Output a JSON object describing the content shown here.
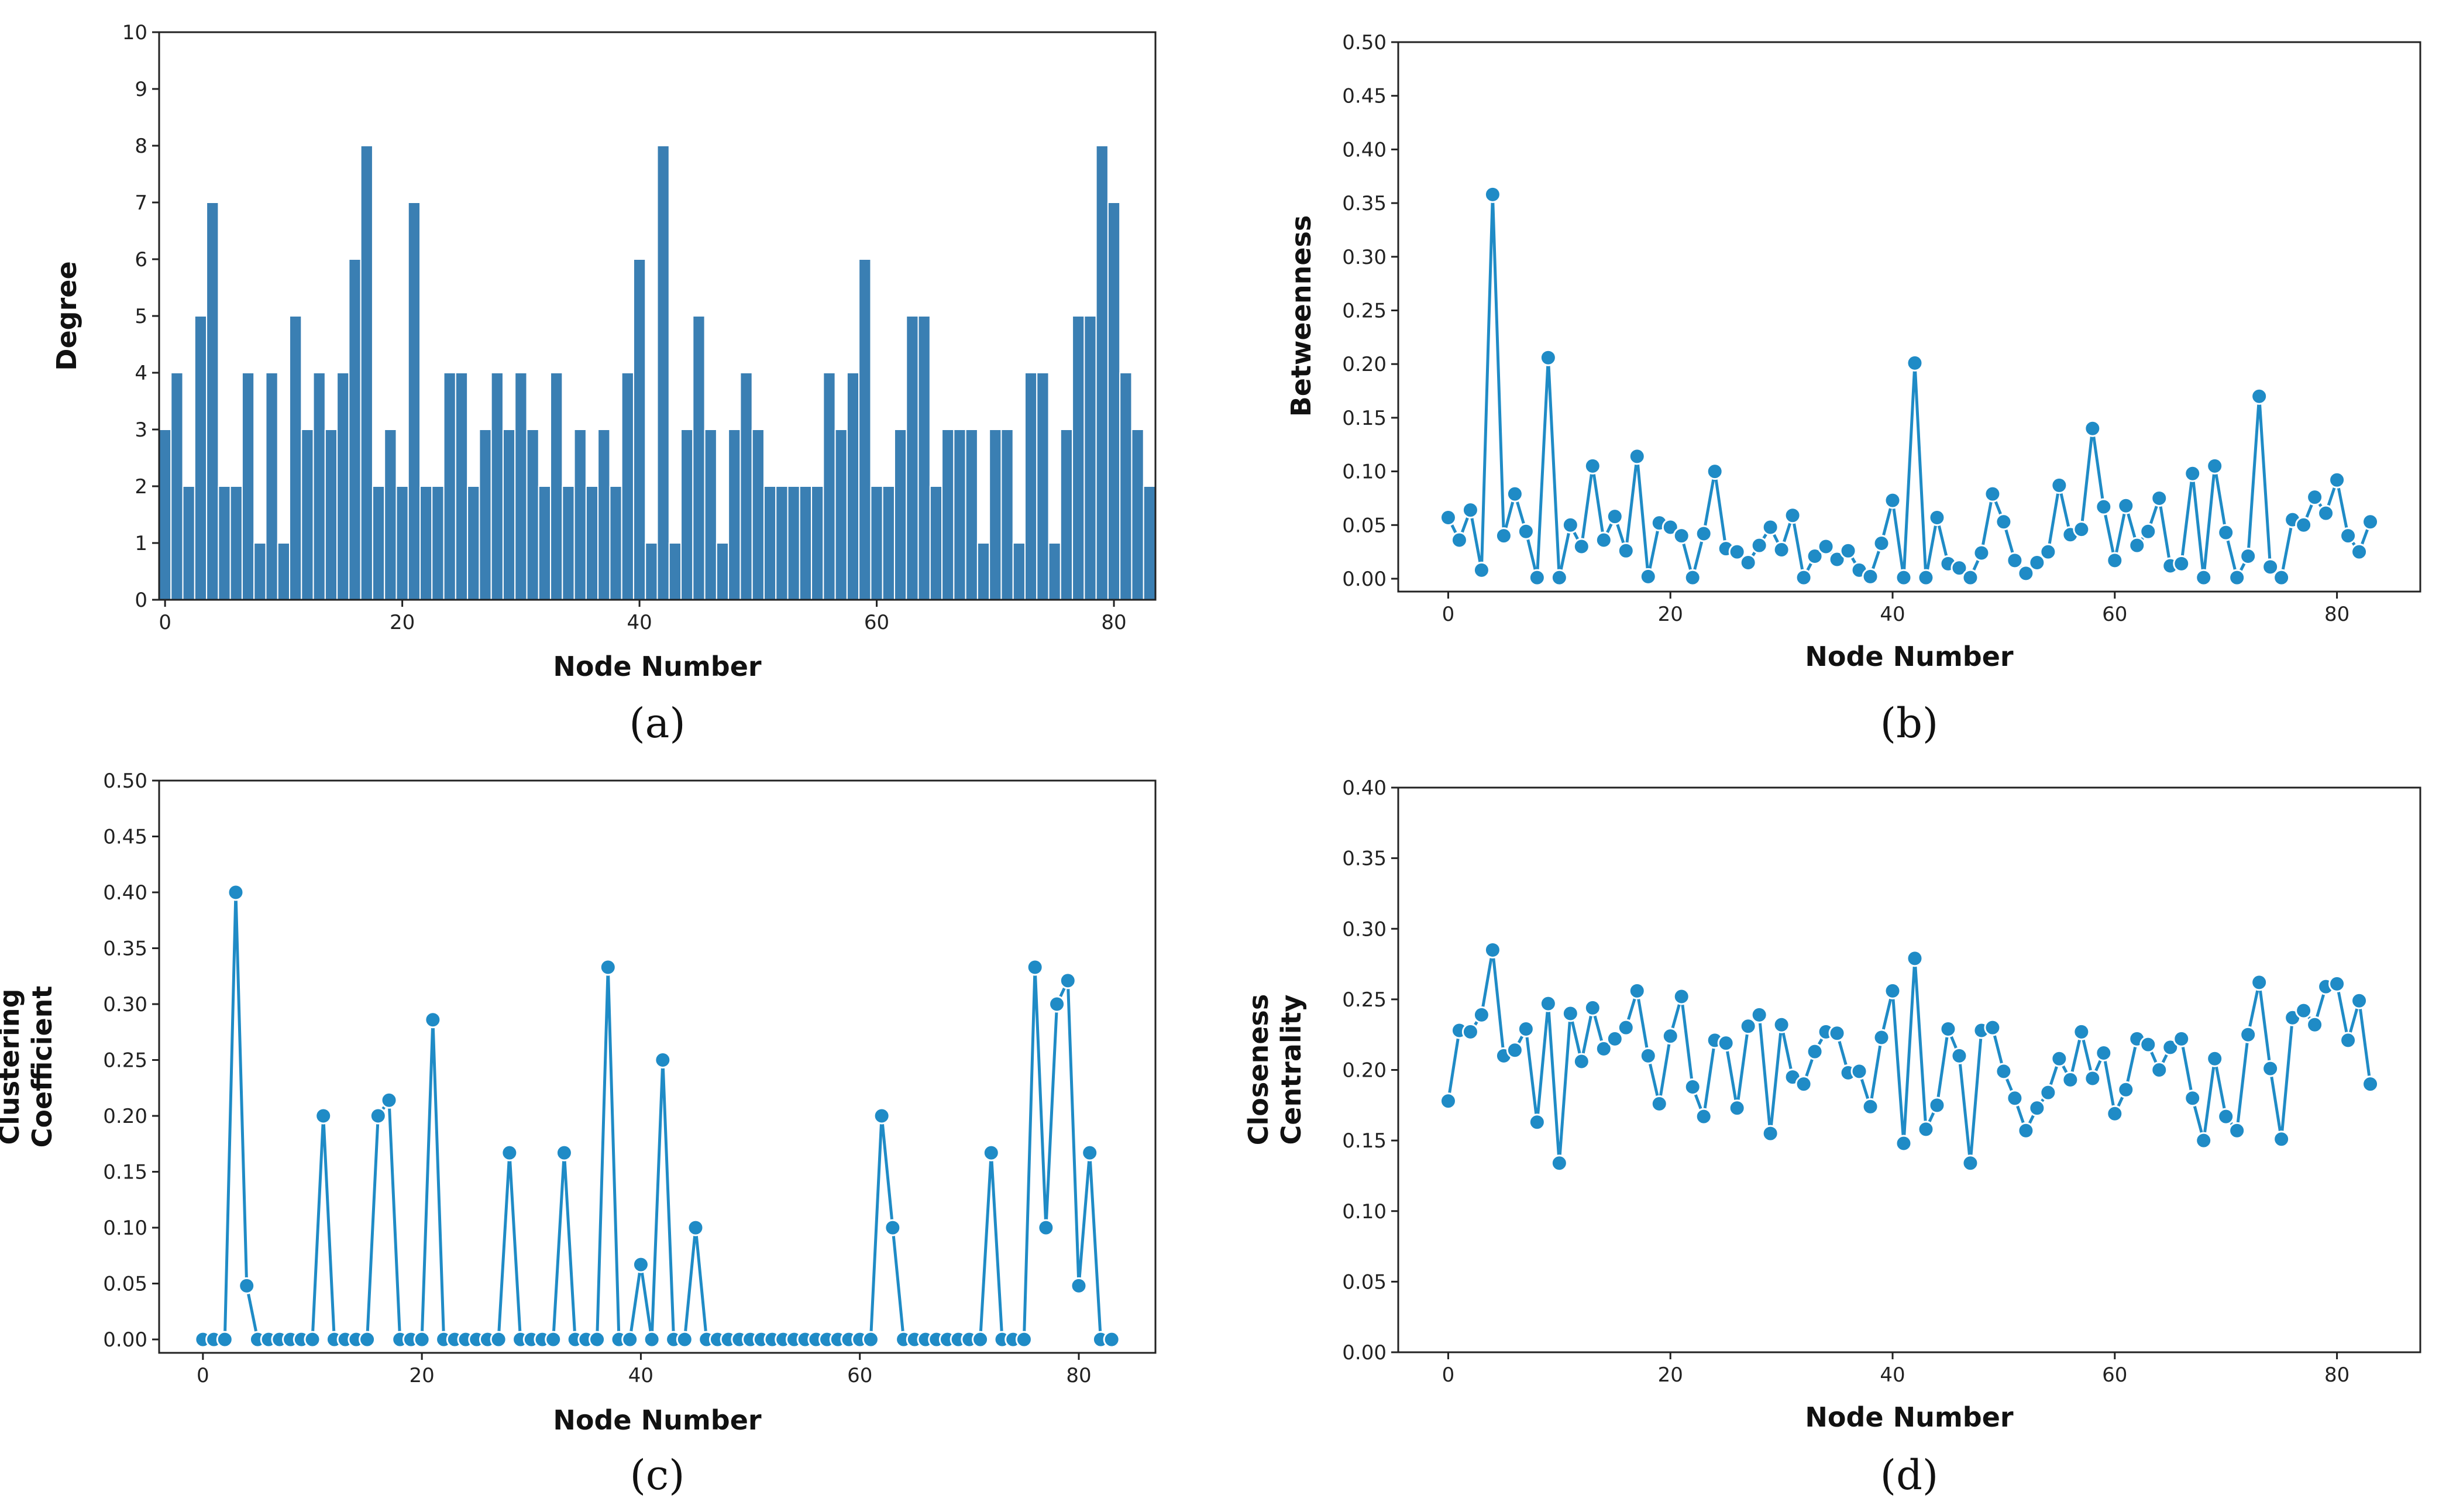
{
  "chart_data": [
    {
      "id": "a",
      "type": "bar",
      "caption": "(a)",
      "xlabel": "Node Number",
      "ylabel": [
        "Degree"
      ],
      "xlim": [
        -0.5,
        83.5
      ],
      "ylim": [
        0,
        10
      ],
      "yticks": [
        "0",
        "1",
        "2",
        "3",
        "4",
        "5",
        "6",
        "7",
        "8",
        "9",
        "10"
      ],
      "xticks": [
        "0",
        "20",
        "40",
        "60",
        "80"
      ],
      "xtick_values": [
        0,
        20,
        40,
        60,
        80
      ],
      "color": "#3a7fb3",
      "values": [
        3,
        4,
        2,
        5,
        7,
        2,
        2,
        4,
        1,
        4,
        1,
        5,
        3,
        4,
        3,
        4,
        6,
        8,
        2,
        3,
        2,
        7,
        2,
        2,
        4,
        4,
        2,
        3,
        4,
        3,
        4,
        3,
        2,
        4,
        2,
        3,
        2,
        3,
        2,
        4,
        6,
        1,
        8,
        1,
        3,
        5,
        3,
        1,
        3,
        4,
        3,
        2,
        2,
        2,
        2,
        2,
        4,
        3,
        4,
        6,
        2,
        2,
        3,
        5,
        5,
        2,
        3,
        3,
        3,
        1,
        3,
        3,
        1,
        4,
        4,
        1,
        3,
        5,
        5,
        8,
        7,
        4,
        3,
        2
      ]
    },
    {
      "id": "b",
      "type": "line",
      "caption": "(b)",
      "xlabel": "Node Number",
      "ylabel": [
        "Betweenness"
      ],
      "xlim": [
        -4.5,
        87.5
      ],
      "ylim": [
        -0.012,
        0.5
      ],
      "yticks": [
        "0.00",
        "0.05",
        "0.10",
        "0.15",
        "0.20",
        "0.25",
        "0.30",
        "0.35",
        "0.40",
        "0.45",
        "0.50"
      ],
      "xticks": [
        "0",
        "20",
        "40",
        "60",
        "80"
      ],
      "xtick_values": [
        0,
        20,
        40,
        60,
        80
      ],
      "color": "#1f8bc6",
      "values": [
        0.057,
        0.036,
        0.064,
        0.008,
        0.358,
        0.04,
        0.079,
        0.044,
        0.001,
        0.206,
        0.001,
        0.05,
        0.03,
        0.105,
        0.036,
        0.058,
        0.026,
        0.114,
        0.002,
        0.052,
        0.048,
        0.04,
        0.001,
        0.042,
        0.1,
        0.028,
        0.025,
        0.015,
        0.031,
        0.048,
        0.027,
        0.059,
        0.001,
        0.021,
        0.03,
        0.018,
        0.026,
        0.008,
        0.002,
        0.033,
        0.073,
        0.001,
        0.201,
        0.001,
        0.057,
        0.014,
        0.01,
        0.001,
        0.024,
        0.079,
        0.053,
        0.017,
        0.005,
        0.015,
        0.025,
        0.087,
        0.041,
        0.046,
        0.14,
        0.067,
        0.017,
        0.068,
        0.031,
        0.044,
        0.075,
        0.012,
        0.014,
        0.098,
        0.001,
        0.105,
        0.043,
        0.001,
        0.021,
        0.17,
        0.011,
        0.001,
        0.055,
        0.05,
        0.076,
        0.061,
        0.092,
        0.04,
        0.025,
        0.053
      ]
    },
    {
      "id": "c",
      "type": "line",
      "caption": "(c)",
      "xlabel": "Node Number",
      "ylabel": [
        "Clustering",
        "Coefficient"
      ],
      "xlim": [
        -4,
        87
      ],
      "ylim": [
        -0.012,
        0.5
      ],
      "yticks": [
        "0.00",
        "0.05",
        "0.10",
        "0.15",
        "0.20",
        "0.25",
        "0.30",
        "0.35",
        "0.40",
        "0.45",
        "0.50"
      ],
      "xticks": [
        "0",
        "20",
        "40",
        "60",
        "80"
      ],
      "xtick_values": [
        0,
        20,
        40,
        60,
        80
      ],
      "color": "#1f8bc6",
      "values": [
        0,
        0,
        0,
        0.4,
        0.048,
        0,
        0,
        0,
        0,
        0,
        0,
        0.2,
        0,
        0,
        0,
        0,
        0.2,
        0.214,
        0,
        0,
        0,
        0.286,
        0,
        0,
        0,
        0,
        0,
        0,
        0.167,
        0,
        0,
        0,
        0,
        0.167,
        0,
        0,
        0,
        0.333,
        0,
        0,
        0.067,
        0,
        0.25,
        0,
        0,
        0.1,
        0,
        0,
        0,
        0,
        0,
        0,
        0,
        0,
        0,
        0,
        0,
        0,
        0,
        0,
        0,
        0,
        0.2,
        0.1,
        0,
        0,
        0,
        0,
        0,
        0,
        0,
        0,
        0.167,
        0,
        0,
        0,
        0.333,
        0.1,
        0.3,
        0.321,
        0.048,
        0.167,
        0,
        0
      ]
    },
    {
      "id": "d",
      "type": "line",
      "caption": "(d)",
      "xlabel": "Node Number",
      "ylabel": [
        "Closeness",
        "Centrality"
      ],
      "xlim": [
        -4.5,
        87.5
      ],
      "ylim": [
        0,
        0.4
      ],
      "yticks": [
        "0.00",
        "0.05",
        "0.10",
        "0.15",
        "0.20",
        "0.25",
        "0.30",
        "0.35",
        "0.40"
      ],
      "xticks": [
        "0",
        "20",
        "40",
        "60",
        "80"
      ],
      "xtick_values": [
        0,
        20,
        40,
        60,
        80
      ],
      "color": "#1f8bc6",
      "values": [
        0.178,
        0.228,
        0.227,
        0.239,
        0.285,
        0.21,
        0.214,
        0.229,
        0.163,
        0.247,
        0.134,
        0.24,
        0.206,
        0.244,
        0.215,
        0.222,
        0.23,
        0.256,
        0.21,
        0.176,
        0.224,
        0.252,
        0.188,
        0.167,
        0.221,
        0.219,
        0.173,
        0.231,
        0.239,
        0.155,
        0.232,
        0.195,
        0.19,
        0.213,
        0.227,
        0.226,
        0.198,
        0.199,
        0.174,
        0.223,
        0.256,
        0.148,
        0.279,
        0.158,
        0.175,
        0.229,
        0.21,
        0.134,
        0.228,
        0.23,
        0.199,
        0.18,
        0.157,
        0.173,
        0.184,
        0.208,
        0.193,
        0.227,
        0.194,
        0.212,
        0.169,
        0.186,
        0.222,
        0.218,
        0.2,
        0.216,
        0.222,
        0.18,
        0.15,
        0.208,
        0.167,
        0.157,
        0.225,
        0.262,
        0.201,
        0.151,
        0.237,
        0.242,
        0.232,
        0.259,
        0.261,
        0.221,
        0.249,
        0.19
      ]
    }
  ]
}
